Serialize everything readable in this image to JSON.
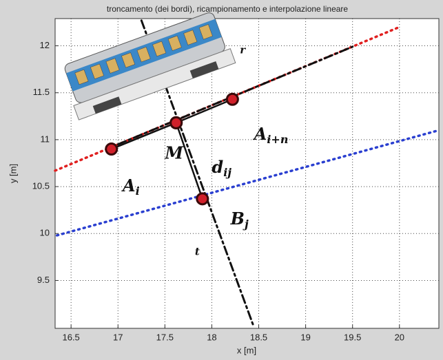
{
  "chart_data": {
    "type": "line",
    "title": "troncamento (dei bordi), ricampionamento e interpolazione lineare",
    "x_label": "x [m]",
    "y_label": "y [m]",
    "xlim": [
      16.33,
      20.42
    ],
    "ylim": [
      8.99,
      12.29
    ],
    "xticks": [
      16.5,
      17,
      17.5,
      18,
      18.5,
      19,
      19.5,
      20
    ],
    "yticks": [
      9.5,
      10,
      10.5,
      11,
      11.5,
      12
    ],
    "grid": true,
    "series": [
      {
        "color": "#e02020",
        "style": "dotted",
        "x": [
          16.33,
          20.0
        ],
        "values": [
          10.67,
          12.2
        ]
      },
      {
        "color": "#111111",
        "style": "dashdot",
        "x": [
          17.0,
          19.5
        ],
        "values": [
          10.95,
          11.99
        ]
      },
      {
        "color": "#2a3fd0",
        "style": "dotted",
        "x": [
          16.35,
          20.42
        ],
        "values": [
          9.98,
          11.1
        ]
      },
      {
        "color": "#111111",
        "style": "dashdot",
        "x": [
          17.25,
          18.45
        ],
        "values": [
          12.27,
          9.0
        ]
      },
      {
        "color": "#111111",
        "style": "solid",
        "markers": true,
        "x": [
          16.93,
          17.62,
          18.22
        ],
        "values": [
          10.9,
          11.18,
          11.43
        ]
      },
      {
        "color": "#111111",
        "style": "solid",
        "markers": true,
        "x": [
          17.62,
          17.9
        ],
        "values": [
          11.18,
          10.37
        ]
      }
    ],
    "annotations": [
      {
        "text": "r",
        "x": 18.3,
        "y": 11.95
      },
      {
        "text": "t",
        "x": 17.82,
        "y": 9.8
      },
      {
        "text": "M",
        "x": 17.5,
        "y": 10.85
      },
      {
        "text": "A",
        "sub": "i",
        "x": 17.05,
        "y": 10.5
      },
      {
        "text": "A",
        "sub": "i+n",
        "x": 18.45,
        "y": 11.05
      },
      {
        "text": "d",
        "sub": "ij",
        "x": 18.0,
        "y": 10.7
      },
      {
        "text": "B",
        "sub": "j",
        "x": 18.2,
        "y": 10.15
      }
    ]
  }
}
